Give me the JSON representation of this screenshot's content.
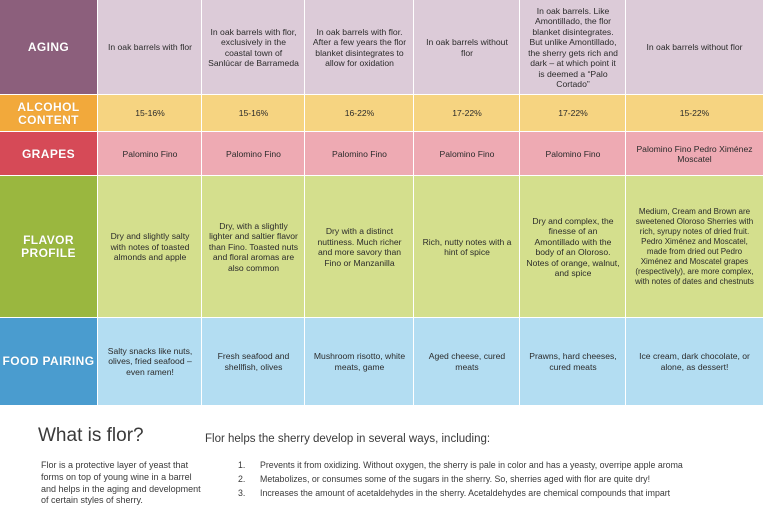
{
  "colors": {
    "aging": "#8c5f7c",
    "aging_cell": "#dccbd8",
    "alcohol": "#f2a93b",
    "alcohol_cell": "#f6d481",
    "grapes": "#d64a57",
    "grapes_cell": "#eeaab3",
    "flavor": "#9ab73f",
    "flavor_cell": "#d4df8d",
    "food": "#4a9ccf",
    "food_cell": "#b3ddf2"
  },
  "table": {
    "rows": [
      {
        "header": "AGING",
        "cells": [
          "In oak barrels with flor",
          "In oak barrels with flor, exclusively in the coastal town of Sanlúcar de Barrameda",
          "In oak barrels with flor. After a few years the flor blanket disintegrates to allow for oxidation",
          "In oak barrels without flor",
          "In oak barrels. Like Amontillado, the flor blanket disintegrates. But unlike Amontillado, the sherry gets rich and dark – at which point it is deemed a “Palo Cortado”",
          "In oak barrels without flor"
        ]
      },
      {
        "header": "ALCOHOL CONTENT",
        "cells": [
          "15-16%",
          "15-16%",
          "16-22%",
          "17-22%",
          "17-22%",
          "15-22%"
        ]
      },
      {
        "header": "GRAPES",
        "cells": [
          "Palomino Fino",
          "Palomino Fino",
          "Palomino Fino",
          "Palomino Fino",
          "Palomino Fino",
          "Palomino Fino Pedro Ximénez Moscatel"
        ]
      },
      {
        "header": "FLAVOR PROFILE",
        "cells": [
          "Dry and slightly salty with notes of toasted almonds and apple",
          "Dry, with a slightly lighter and saltier flavor than Fino. Toasted nuts and floral aromas are also common",
          "Dry with a distinct nuttiness. Much richer and more savory than Fino or Manzanilla",
          "Rich, nutty notes with a hint of spice",
          "Dry and complex, the finesse of an Amontillado with the body of an Oloroso. Notes of orange, walnut, and spice",
          "Medium, Cream and Brown are sweetened Oloroso Sherries with rich, syrupy notes of dried fruit. Pedro Ximénez and Moscatel, made from dried out Pedro Ximénez and Moscatel grapes (respectively), are more complex, with notes of dates and chestnuts"
        ]
      },
      {
        "header": "FOOD PAIRING",
        "cells": [
          "Salty snacks like nuts, olives, fried seafood – even ramen!",
          "Fresh seafood and shellfish, olives",
          "Mushroom risotto, white meats, game",
          "Aged cheese, cured meats",
          "Prawns, hard cheeses, cured meats",
          "Ice cream, dark chocolate, or alone, as dessert!"
        ]
      }
    ]
  },
  "flor": {
    "title": "What is flor?",
    "intro": "Flor helps the sherry develop in several ways, including:",
    "description": "Flor is a protective layer of yeast that forms on top of young wine in a barrel and helps in the aging and development of certain styles of sherry.",
    "items": [
      {
        "num": "1.",
        "text": "Prevents it from oxidizing. Without oxygen, the sherry is pale in color and has a yeasty, overripe apple aroma"
      },
      {
        "num": "2.",
        "text": "Metabolizes, or consumes some of the sugars in the sherry. So, sherries aged with flor are quite dry!"
      },
      {
        "num": "3.",
        "text": "Increases the amount of acetaldehydes in the sherry. Acetaldehydes are chemical compounds that impart"
      }
    ]
  }
}
